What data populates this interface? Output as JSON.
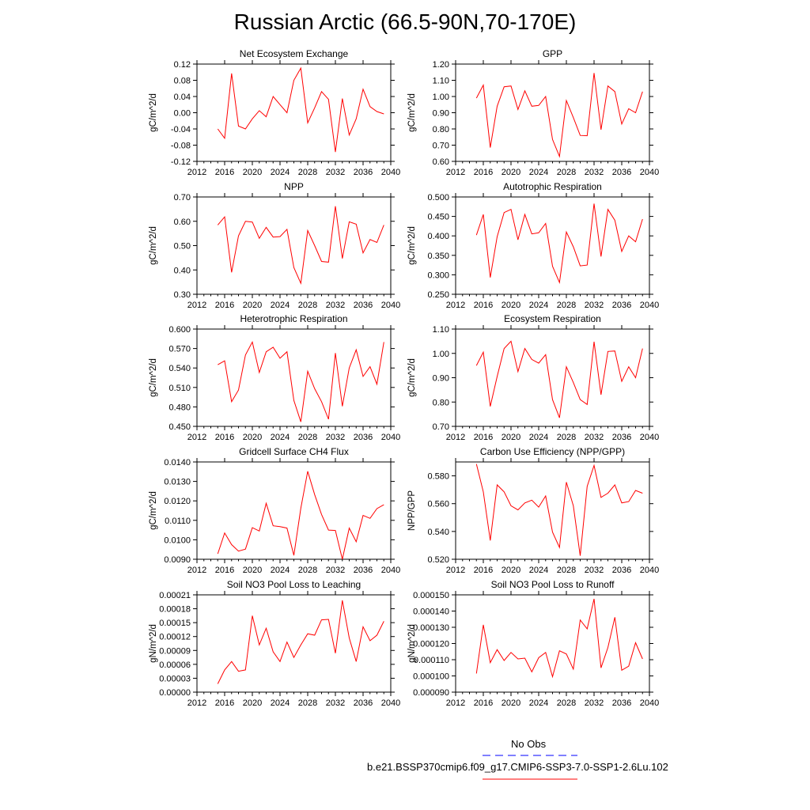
{
  "title": "Russian Arctic (66.5-90N,70-170E)",
  "colors": {
    "series": "#ff0000",
    "obs": "#0000ff"
  },
  "legend": {
    "obs_label": "No Obs",
    "model_label": "b.e21.BSSP370cmip6.f09_g17.CMIP6-SSP3-7.0-SSP1-2.6Lu.102"
  },
  "chart_data": [
    {
      "type": "line",
      "title": "Net Ecosystem Exchange",
      "ylabel": "gC/m^2/d",
      "xlim": [
        2012,
        2040
      ],
      "ylim": [
        -0.12,
        0.12
      ],
      "xticks": [
        "2012",
        "2016",
        "2020",
        "2024",
        "2028",
        "2032",
        "2036",
        "2040"
      ],
      "yticks": [
        "-0.12",
        "-0.08",
        "-0.04",
        "0.00",
        "0.04",
        "0.08",
        "0.12"
      ],
      "x": [
        2015,
        2016,
        2017,
        2018,
        2019,
        2020,
        2021,
        2022,
        2023,
        2024,
        2025,
        2026,
        2027,
        2028,
        2029,
        2030,
        2031,
        2032,
        2033,
        2034,
        2035,
        2036,
        2037,
        2038,
        2039
      ],
      "values": [
        -0.04,
        -0.063,
        0.097,
        -0.033,
        -0.04,
        -0.015,
        0.005,
        -0.01,
        0.04,
        0.02,
        0.0,
        0.08,
        0.11,
        -0.025,
        0.012,
        0.052,
        0.033,
        -0.097,
        0.035,
        -0.055,
        -0.015,
        0.058,
        0.015,
        0.003,
        -0.003
      ]
    },
    {
      "type": "line",
      "title": "GPP",
      "ylabel": "gC/m^2/d",
      "xlim": [
        2012,
        2040
      ],
      "ylim": [
        0.6,
        1.2
      ],
      "xticks": [
        "2012",
        "2016",
        "2020",
        "2024",
        "2028",
        "2032",
        "2036",
        "2040"
      ],
      "yticks": [
        "0.60",
        "0.70",
        "0.80",
        "0.90",
        "1.00",
        "1.10",
        "1.20"
      ],
      "x": [
        2015,
        2016,
        2017,
        2018,
        2019,
        2020,
        2021,
        2022,
        2023,
        2024,
        2025,
        2026,
        2027,
        2028,
        2029,
        2030,
        2031,
        2032,
        2033,
        2034,
        2035,
        2036,
        2037,
        2038,
        2039
      ],
      "values": [
        0.99,
        1.07,
        0.685,
        0.94,
        1.06,
        1.065,
        0.92,
        1.035,
        0.94,
        0.945,
        1.0,
        0.735,
        0.63,
        0.975,
        0.87,
        0.76,
        0.758,
        1.145,
        0.795,
        1.065,
        1.03,
        0.83,
        0.925,
        0.9,
        1.03
      ]
    },
    {
      "type": "line",
      "title": "NPP",
      "ylabel": "gC/m^2/d",
      "xlim": [
        2012,
        2040
      ],
      "ylim": [
        0.3,
        0.7
      ],
      "xticks": [
        "2012",
        "2016",
        "2020",
        "2024",
        "2028",
        "2032",
        "2036",
        "2040"
      ],
      "yticks": [
        "0.30",
        "0.40",
        "0.50",
        "0.60",
        "0.70"
      ],
      "x": [
        2015,
        2016,
        2017,
        2018,
        2019,
        2020,
        2021,
        2022,
        2023,
        2024,
        2025,
        2026,
        2027,
        2028,
        2029,
        2030,
        2031,
        2032,
        2033,
        2034,
        2035,
        2036,
        2037,
        2038,
        2039
      ],
      "values": [
        0.585,
        0.618,
        0.39,
        0.54,
        0.6,
        0.597,
        0.53,
        0.575,
        0.535,
        0.537,
        0.567,
        0.41,
        0.345,
        0.562,
        0.5,
        0.435,
        0.432,
        0.662,
        0.447,
        0.598,
        0.588,
        0.47,
        0.525,
        0.513,
        0.585
      ]
    },
    {
      "type": "line",
      "title": "Autotrophic Respiration",
      "ylabel": "gC/m^2/d",
      "xlim": [
        2012,
        2040
      ],
      "ylim": [
        0.25,
        0.5
      ],
      "xticks": [
        "2012",
        "2016",
        "2020",
        "2024",
        "2028",
        "2032",
        "2036",
        "2040"
      ],
      "yticks": [
        "0.250",
        "0.300",
        "0.350",
        "0.400",
        "0.450",
        "0.500"
      ],
      "x": [
        2015,
        2016,
        2017,
        2018,
        2019,
        2020,
        2021,
        2022,
        2023,
        2024,
        2025,
        2026,
        2027,
        2028,
        2029,
        2030,
        2031,
        2032,
        2033,
        2034,
        2035,
        2036,
        2037,
        2038,
        2039
      ],
      "values": [
        0.402,
        0.455,
        0.293,
        0.398,
        0.46,
        0.468,
        0.39,
        0.455,
        0.405,
        0.408,
        0.432,
        0.322,
        0.28,
        0.41,
        0.372,
        0.323,
        0.325,
        0.483,
        0.347,
        0.468,
        0.44,
        0.36,
        0.4,
        0.385,
        0.443
      ]
    },
    {
      "type": "line",
      "title": "Heterotrophic Respiration",
      "ylabel": "gC/m^2/d",
      "xlim": [
        2012,
        2040
      ],
      "ylim": [
        0.45,
        0.6
      ],
      "xticks": [
        "2012",
        "2016",
        "2020",
        "2024",
        "2028",
        "2032",
        "2036",
        "2040"
      ],
      "yticks": [
        "0.450",
        "0.480",
        "0.510",
        "0.540",
        "0.570",
        "0.600"
      ],
      "x": [
        2015,
        2016,
        2017,
        2018,
        2019,
        2020,
        2021,
        2022,
        2023,
        2024,
        2025,
        2026,
        2027,
        2028,
        2029,
        2030,
        2031,
        2032,
        2033,
        2034,
        2035,
        2036,
        2037,
        2038,
        2039
      ],
      "values": [
        0.545,
        0.551,
        0.488,
        0.506,
        0.56,
        0.58,
        0.533,
        0.565,
        0.572,
        0.555,
        0.565,
        0.49,
        0.457,
        0.535,
        0.508,
        0.488,
        0.461,
        0.563,
        0.481,
        0.54,
        0.568,
        0.527,
        0.542,
        0.515,
        0.58
      ]
    },
    {
      "type": "line",
      "title": "Ecosystem Respiration",
      "ylabel": "gC/m^2/d",
      "xlim": [
        2012,
        2040
      ],
      "ylim": [
        0.7,
        1.1
      ],
      "xticks": [
        "2012",
        "2016",
        "2020",
        "2024",
        "2028",
        "2032",
        "2036",
        "2040"
      ],
      "yticks": [
        "0.70",
        "0.80",
        "0.90",
        "1.00",
        "1.10"
      ],
      "x": [
        2015,
        2016,
        2017,
        2018,
        2019,
        2020,
        2021,
        2022,
        2023,
        2024,
        2025,
        2026,
        2027,
        2028,
        2029,
        2030,
        2031,
        2032,
        2033,
        2034,
        2035,
        2036,
        2037,
        2038,
        2039
      ],
      "values": [
        0.95,
        1.005,
        0.782,
        0.905,
        1.02,
        1.05,
        0.925,
        1.02,
        0.975,
        0.96,
        0.995,
        0.81,
        0.735,
        0.945,
        0.88,
        0.81,
        0.79,
        1.048,
        0.83,
        1.008,
        1.01,
        0.885,
        0.945,
        0.9,
        1.02
      ]
    },
    {
      "type": "line",
      "title": "Gridcell Surface CH4 Flux",
      "ylabel": "gC/m^2/d",
      "xlim": [
        2012,
        2040
      ],
      "ylim": [
        0.009,
        0.014
      ],
      "xticks": [
        "2012",
        "2016",
        "2020",
        "2024",
        "2028",
        "2032",
        "2036",
        "2040"
      ],
      "yticks": [
        "0.0090",
        "0.0100",
        "0.0110",
        "0.0120",
        "0.0130",
        "0.0140"
      ],
      "x": [
        2015,
        2016,
        2017,
        2018,
        2019,
        2020,
        2021,
        2022,
        2023,
        2024,
        2025,
        2026,
        2027,
        2028,
        2029,
        2030,
        2031,
        2032,
        2033,
        2034,
        2035,
        2036,
        2037,
        2038,
        2039
      ],
      "values": [
        0.00928,
        0.01035,
        0.00975,
        0.00942,
        0.00952,
        0.01062,
        0.01045,
        0.01188,
        0.01072,
        0.01068,
        0.0106,
        0.0092,
        0.01162,
        0.01352,
        0.01232,
        0.0113,
        0.0105,
        0.01048,
        0.009,
        0.0106,
        0.0099,
        0.01125,
        0.0111,
        0.0116,
        0.0118
      ]
    },
    {
      "type": "line",
      "title": "Carbon Use Efficiency (NPP/GPP)",
      "ylabel": "NPP/GPP",
      "xlim": [
        2012,
        2040
      ],
      "ylim": [
        0.52,
        0.59
      ],
      "xticks": [
        "2012",
        "2016",
        "2020",
        "2024",
        "2028",
        "2032",
        "2036",
        "2040"
      ],
      "yticks": [
        "0.520",
        "0.540",
        "0.560",
        "0.580"
      ],
      "x": [
        2015,
        2016,
        2017,
        2018,
        2019,
        2020,
        2021,
        2022,
        2023,
        2024,
        2025,
        2026,
        2027,
        2028,
        2029,
        2030,
        2031,
        2032,
        2033,
        2034,
        2035,
        2036,
        2037,
        2038,
        2039
      ],
      "values": [
        0.5885,
        0.5685,
        0.5335,
        0.5735,
        0.5685,
        0.5585,
        0.5555,
        0.5605,
        0.5625,
        0.5575,
        0.5655,
        0.5395,
        0.5285,
        0.5755,
        0.5585,
        0.5225,
        0.5725,
        0.5875,
        0.5645,
        0.5675,
        0.5735,
        0.5605,
        0.5615,
        0.5695,
        0.5675
      ]
    },
    {
      "type": "line",
      "title": "Soil NO3 Pool Loss to Leaching",
      "ylabel": "gN/m^2/d",
      "xlim": [
        2012,
        2040
      ],
      "ylim": [
        0.0,
        0.00021
      ],
      "xticks": [
        "2012",
        "2016",
        "2020",
        "2024",
        "2028",
        "2032",
        "2036",
        "2040"
      ],
      "yticks": [
        "0.00000",
        "0.00003",
        "0.00006",
        "0.00009",
        "0.00012",
        "0.00015",
        "0.00018",
        "0.00021"
      ],
      "x": [
        2015,
        2016,
        2017,
        2018,
        2019,
        2020,
        2021,
        2022,
        2023,
        2024,
        2025,
        2026,
        2027,
        2028,
        2029,
        2030,
        2031,
        2032,
        2033,
        2034,
        2035,
        2036,
        2037,
        2038,
        2039
      ],
      "values": [
        1.8e-05,
        4.8e-05,
        6.6e-05,
        4.5e-05,
        4.8e-05,
        0.000165,
        0.000102,
        0.000138,
        8.7e-05,
        6.6e-05,
        0.000108,
        7.5e-05,
        0.000102,
        0.000126,
        0.000123,
        0.000156,
        0.000157,
        8.4e-05,
        0.000198,
        0.000117,
        6.6e-05,
        0.000141,
        0.000111,
        0.000123,
        0.000153
      ]
    },
    {
      "type": "line",
      "title": "Soil NO3 Pool Loss to Runoff",
      "ylabel": "gN/m^2/d",
      "xlim": [
        2012,
        2040
      ],
      "ylim": [
        9e-05,
        0.00015
      ],
      "xticks": [
        "2012",
        "2016",
        "2020",
        "2024",
        "2028",
        "2032",
        "2036",
        "2040"
      ],
      "yticks": [
        "0.000090",
        "0.000100",
        "0.000110",
        "0.000120",
        "0.000130",
        "0.000140",
        "0.000150"
      ],
      "x": [
        2015,
        2016,
        2017,
        2018,
        2019,
        2020,
        2021,
        2022,
        2023,
        2024,
        2025,
        2026,
        2027,
        2028,
        2029,
        2030,
        2031,
        2032,
        2033,
        2034,
        2035,
        2036,
        2037,
        2038,
        2039
      ],
      "values": [
        0.0001015,
        0.0001315,
        0.0001082,
        0.0001162,
        0.0001095,
        0.0001145,
        0.0001105,
        0.000111,
        0.0001025,
        0.0001112,
        0.0001145,
        9.95e-05,
        0.0001155,
        0.0001135,
        0.0001042,
        0.0001345,
        0.000129,
        0.0001475,
        0.000105,
        0.0001175,
        0.0001362,
        0.0001035,
        0.000106,
        0.0001205,
        0.0001105
      ]
    }
  ]
}
